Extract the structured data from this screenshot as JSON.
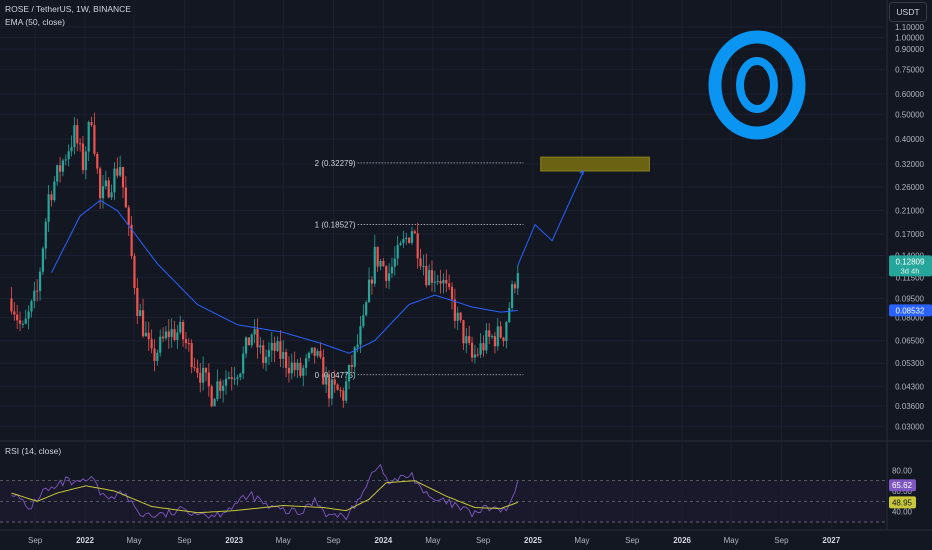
{
  "header": {
    "symbol_line": "ROSE / TetherUS, 1W, BINANCE",
    "ema_label": "EMA (50, close)",
    "rsi_label": "RSI (14, close)",
    "currency_button": "USDT"
  },
  "logo": {
    "name": "oasis-network-logo",
    "color": "#0a95f2"
  },
  "colors": {
    "background": "#131722",
    "up": "#26a69a",
    "down": "#ef5350",
    "ema": "#2962ff",
    "rsi": "#7e57c2",
    "rsi_ma": "#c8c83a",
    "target_box": "#6b6214",
    "projection": "#2962ff"
  },
  "chart_data": [
    {
      "type": "candlestick",
      "title": "ROSE / TetherUS, 1W, BINANCE",
      "scale": "log",
      "ylim": [
        0.027,
        1.15
      ],
      "price_axis_ticks": [
        "1.10000",
        "1.00000",
        "0.90000",
        "0.75000",
        "0.60000",
        "0.50000",
        "0.40000",
        "0.32000",
        "0.26000",
        "0.21000",
        "0.17000",
        "0.14000",
        "0.11500",
        "0.09500",
        "0.08000",
        "0.06500",
        "0.05300",
        "0.04300",
        "0.03600",
        "0.03000"
      ],
      "time_axis_ticks": [
        "Sep",
        "2022",
        "May",
        "Sep",
        "2023",
        "May",
        "Sep",
        "2024",
        "May",
        "Sep",
        "2025",
        "May",
        "Sep",
        "2026",
        "May",
        "Sep",
        "2027"
      ],
      "ohlc_anchors": [
        [
          "2021-07-05",
          0.095
        ],
        [
          "2021-08-01",
          0.07
        ],
        [
          "2021-09-06",
          0.1
        ],
        [
          "2021-10-04",
          0.24
        ],
        [
          "2021-11-15",
          0.35
        ],
        [
          "2021-12-06",
          0.42
        ],
        [
          "2021-12-27",
          0.32
        ],
        [
          "2022-01-17",
          0.5
        ],
        [
          "2022-02-07",
          0.23
        ],
        [
          "2022-03-28",
          0.32
        ],
        [
          "2022-05-09",
          0.09
        ],
        [
          "2022-06-13",
          0.055
        ],
        [
          "2022-07-25",
          0.07
        ],
        [
          "2022-08-22",
          0.07
        ],
        [
          "2022-11-07",
          0.04
        ],
        [
          "2022-11-21",
          0.044
        ],
        [
          "2023-01-16",
          0.052
        ],
        [
          "2023-02-13",
          0.07
        ],
        [
          "2023-03-13",
          0.055
        ],
        [
          "2023-04-10",
          0.06
        ],
        [
          "2023-06-12",
          0.048
        ],
        [
          "2023-07-17",
          0.058
        ],
        [
          "2023-08-21",
          0.042
        ],
        [
          "2023-09-25",
          0.04
        ],
        [
          "2023-11-13",
          0.075
        ],
        [
          "2023-12-11",
          0.14
        ],
        [
          "2024-01-15",
          0.12
        ],
        [
          "2024-03-11",
          0.18
        ],
        [
          "2024-04-15",
          0.12
        ],
        [
          "2024-05-20",
          0.115
        ],
        [
          "2024-06-17",
          0.09
        ],
        [
          "2024-08-05",
          0.055
        ],
        [
          "2024-09-09",
          0.065
        ],
        [
          "2024-10-21",
          0.07
        ],
        [
          "2024-11-25",
          0.128
        ]
      ],
      "ema_50_anchors": [
        [
          "2021-10-11",
          0.12
        ],
        [
          "2021-12-20",
          0.2
        ],
        [
          "2022-02-07",
          0.23
        ],
        [
          "2022-03-21",
          0.21
        ],
        [
          "2022-06-27",
          0.13
        ],
        [
          "2022-10-03",
          0.09
        ],
        [
          "2023-01-09",
          0.075
        ],
        [
          "2023-05-01",
          0.07
        ],
        [
          "2023-08-07",
          0.063
        ],
        [
          "2023-10-09",
          0.058
        ],
        [
          "2023-12-11",
          0.065
        ],
        [
          "2024-03-04",
          0.09
        ],
        [
          "2024-05-06",
          0.098
        ],
        [
          "2024-08-05",
          0.088
        ],
        [
          "2024-10-14",
          0.084
        ],
        [
          "2024-11-25",
          0.0853
        ]
      ],
      "current_price": {
        "value": 0.12809,
        "label": "0.12809",
        "countdown": "3d 4h"
      },
      "ema_value": {
        "value": 0.08532,
        "label": "0.08532"
      },
      "fib_levels": [
        {
          "ratio": 2,
          "price": 0.32279,
          "label": "2 (0.32279)"
        },
        {
          "ratio": 1,
          "price": 0.18527,
          "label": "1 (0.18527)"
        },
        {
          "ratio": 0,
          "price": 0.04775,
          "label": "0 (0.04775)"
        }
      ],
      "target_zone": {
        "from_date": "2025-01-20",
        "to_date": "2025-10-13",
        "low": 0.3,
        "high": 0.34
      },
      "projection_path": [
        [
          "2024-11-25",
          0.128
        ],
        [
          "2025-01-06",
          0.185
        ],
        [
          "2025-02-17",
          0.16
        ],
        [
          "2025-05-05",
          0.3
        ]
      ]
    },
    {
      "type": "line",
      "title": "RSI (14, close)",
      "ylim": [
        30,
        90
      ],
      "levels": [
        70,
        50,
        30
      ],
      "axis_ticks": [
        "80.00",
        "60.00",
        "40.00"
      ],
      "rsi_value": {
        "value": 65.62,
        "label": "65.62"
      },
      "rsi_ma_value": {
        "value": 48.95,
        "label": "48.95"
      },
      "rsi_anchors": [
        [
          "2021-07-05",
          60
        ],
        [
          "2021-08-16",
          42
        ],
        [
          "2021-09-20",
          60
        ],
        [
          "2021-10-18",
          62
        ],
        [
          "2021-11-15",
          70
        ],
        [
          "2021-12-13",
          66
        ],
        [
          "2022-01-17",
          72
        ],
        [
          "2022-02-14",
          54
        ],
        [
          "2022-04-04",
          58
        ],
        [
          "2022-05-16",
          38
        ],
        [
          "2022-07-04",
          36
        ],
        [
          "2022-09-05",
          42
        ],
        [
          "2022-11-14",
          36
        ],
        [
          "2023-01-16",
          50
        ],
        [
          "2023-02-13",
          56
        ],
        [
          "2023-03-27",
          44
        ],
        [
          "2023-06-12",
          38
        ],
        [
          "2023-07-17",
          52
        ],
        [
          "2023-08-21",
          36
        ],
        [
          "2023-10-09",
          36
        ],
        [
          "2023-11-13",
          62
        ],
        [
          "2023-12-18",
          86
        ],
        [
          "2024-01-15",
          68
        ],
        [
          "2024-03-11",
          76
        ],
        [
          "2024-04-22",
          52
        ],
        [
          "2024-06-10",
          48
        ],
        [
          "2024-08-05",
          38
        ],
        [
          "2024-09-16",
          44
        ],
        [
          "2024-10-28",
          40
        ],
        [
          "2024-11-25",
          65.62
        ]
      ],
      "rsi_ma_anchors": [
        [
          "2021-07-05",
          58
        ],
        [
          "2021-09-06",
          50
        ],
        [
          "2021-10-25",
          58
        ],
        [
          "2022-01-03",
          65
        ],
        [
          "2022-03-14",
          60
        ],
        [
          "2022-06-13",
          45
        ],
        [
          "2022-10-03",
          39
        ],
        [
          "2023-01-02",
          41
        ],
        [
          "2023-05-01",
          46
        ],
        [
          "2023-08-07",
          44
        ],
        [
          "2023-10-02",
          41
        ],
        [
          "2023-11-27",
          52
        ],
        [
          "2024-01-08",
          68
        ],
        [
          "2024-03-18",
          70
        ],
        [
          "2024-06-03",
          55
        ],
        [
          "2024-08-12",
          44
        ],
        [
          "2024-10-14",
          43
        ],
        [
          "2024-11-25",
          48.95
        ]
      ]
    }
  ]
}
